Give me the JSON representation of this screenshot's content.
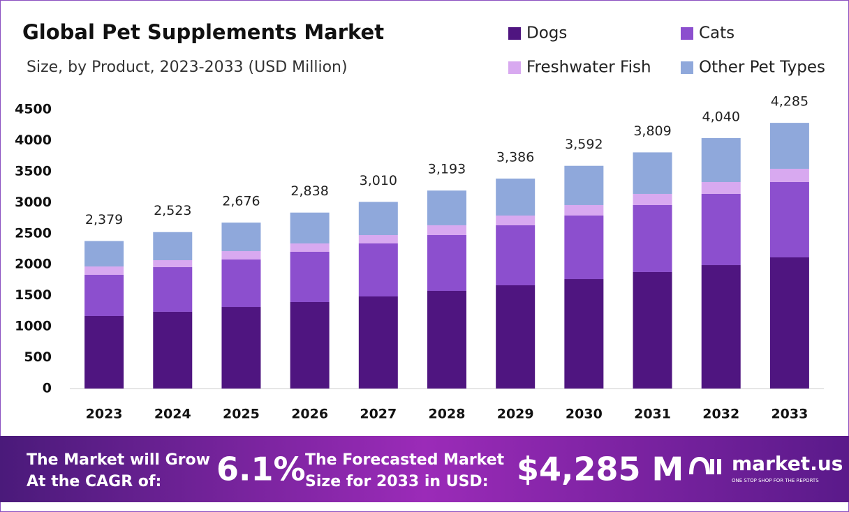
{
  "chart_data": {
    "type": "stacked-bar",
    "title": "Global Pet Supplements Market",
    "subtitle": "Size, by Product, 2023-2033 (USD Million)",
    "categories": [
      "2023",
      "2024",
      "2025",
      "2026",
      "2027",
      "2028",
      "2029",
      "2030",
      "2031",
      "2032",
      "2033"
    ],
    "series": [
      {
        "name": "Dogs",
        "color": "#4f1580",
        "values": [
          1170,
          1238,
          1316,
          1395,
          1485,
          1575,
          1665,
          1766,
          1879,
          1991,
          2115
        ]
      },
      {
        "name": "Cats",
        "color": "#8c4fce",
        "values": [
          664,
          720,
          765,
          810,
          855,
          900,
          968,
          1024,
          1080,
          1148,
          1215
        ]
      },
      {
        "name": "Freshwater Fish",
        "color": "#d8a9f0",
        "values": [
          135,
          112,
          135,
          135,
          135,
          158,
          157,
          169,
          180,
          191,
          214
        ]
      },
      {
        "name": "Other Pet Types",
        "color": "#8fa8db",
        "values": [
          410,
          453,
          460,
          498,
          535,
          560,
          596,
          633,
          670,
          710,
          741
        ]
      }
    ],
    "totals": {
      "values": [
        2379,
        2523,
        2676,
        2838,
        3010,
        3193,
        3386,
        3592,
        3809,
        4040,
        4285
      ],
      "value_labels": [
        "2,379",
        "2,523",
        "2,676",
        "2,838",
        "3,010",
        "3,193",
        "3,386",
        "3,592",
        "3,809",
        "4,040",
        "4,285"
      ]
    },
    "ylim": [
      0,
      4500
    ],
    "yticks": [
      0,
      500,
      1000,
      1500,
      2000,
      2500,
      3000,
      3500,
      4000,
      4500
    ],
    "grid": false
  },
  "footer": {
    "cagr_text": [
      "The Market will Grow",
      "At the CAGR of:"
    ],
    "cagr": "6.1%",
    "forecast_text": [
      "The Forecasted Market",
      "Size for 2033 in USD:"
    ],
    "forecast": "$4,285 M",
    "brand": "market.us",
    "tagline": "ONE STOP SHOP FOR THE REPORTS"
  }
}
